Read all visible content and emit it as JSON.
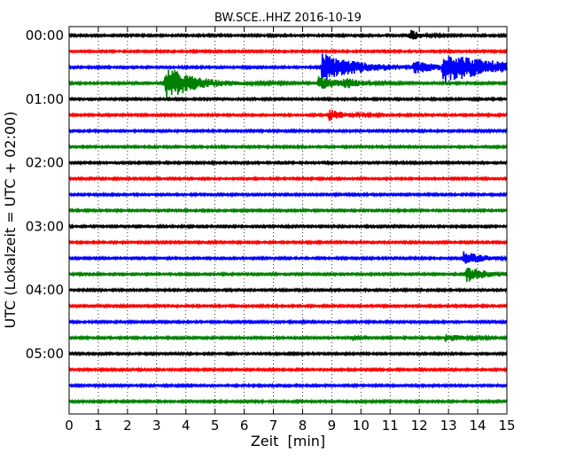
{
  "chart_data": {
    "type": "line",
    "title": "BW.SCE..HHZ 2016-10-19",
    "xlabel": "Zeit  [min]",
    "ylabel": "UTC (Lokalzeit = UTC + 02:00)",
    "xlim": [
      0,
      15
    ],
    "x_ticks": [
      "0",
      "1",
      "2",
      "3",
      "4",
      "5",
      "6",
      "7",
      "8",
      "9",
      "10",
      "11",
      "12",
      "13",
      "14",
      "15"
    ],
    "y_ticks": [
      {
        "label": "00:00",
        "row": 0
      },
      {
        "label": "01:00",
        "row": 4
      },
      {
        "label": "02:00",
        "row": 8
      },
      {
        "label": "03:00",
        "row": 12
      },
      {
        "label": "04:00",
        "row": 16
      },
      {
        "label": "05:00",
        "row": 20
      }
    ],
    "grid": "vertical dotted at each minute",
    "trace_interval_min": 15,
    "color_cycle": [
      "#000000",
      "#ff0000",
      "#0000ff",
      "#008000"
    ],
    "traces": [
      {
        "start": "00:00",
        "events": [
          {
            "t": 11.7,
            "amp": 6,
            "width": 0.3
          }
        ]
      },
      {
        "start": "00:15",
        "events": []
      },
      {
        "start": "00:30",
        "events": [
          {
            "t": 8.65,
            "amp": 16,
            "width": 1.2
          },
          {
            "t": 12.8,
            "amp": 16,
            "width": 1.8
          },
          {
            "t": 11.8,
            "amp": 6,
            "width": 0.8
          }
        ]
      },
      {
        "start": "00:45",
        "events": [
          {
            "t": 3.3,
            "amp": 20,
            "width": 0.9
          },
          {
            "t": 8.55,
            "amp": 7,
            "width": 0.7
          },
          {
            "t": 9.4,
            "amp": 5,
            "width": 0.4
          }
        ]
      },
      {
        "start": "01:00",
        "events": []
      },
      {
        "start": "01:15",
        "events": [
          {
            "t": 8.9,
            "amp": 6,
            "width": 0.5
          }
        ]
      },
      {
        "start": "01:30",
        "events": []
      },
      {
        "start": "01:45",
        "events": []
      },
      {
        "start": "02:00",
        "events": []
      },
      {
        "start": "02:15",
        "events": []
      },
      {
        "start": "02:30",
        "events": []
      },
      {
        "start": "02:45",
        "events": []
      },
      {
        "start": "03:00",
        "events": []
      },
      {
        "start": "03:15",
        "events": []
      },
      {
        "start": "03:30",
        "events": [
          {
            "t": 13.5,
            "amp": 8,
            "width": 0.6
          }
        ]
      },
      {
        "start": "03:45",
        "events": [
          {
            "t": 13.6,
            "amp": 9,
            "width": 0.7
          }
        ]
      },
      {
        "start": "04:00",
        "events": []
      },
      {
        "start": "04:15",
        "events": []
      },
      {
        "start": "04:30",
        "events": []
      },
      {
        "start": "04:45",
        "events": [
          {
            "t": 9.7,
            "amp": 3,
            "width": 0.2
          },
          {
            "t": 12.9,
            "amp": 4,
            "width": 0.5
          }
        ]
      },
      {
        "start": "05:00",
        "events": []
      },
      {
        "start": "05:15",
        "events": []
      },
      {
        "start": "05:30",
        "events": []
      },
      {
        "start": "05:45",
        "events": []
      }
    ]
  }
}
